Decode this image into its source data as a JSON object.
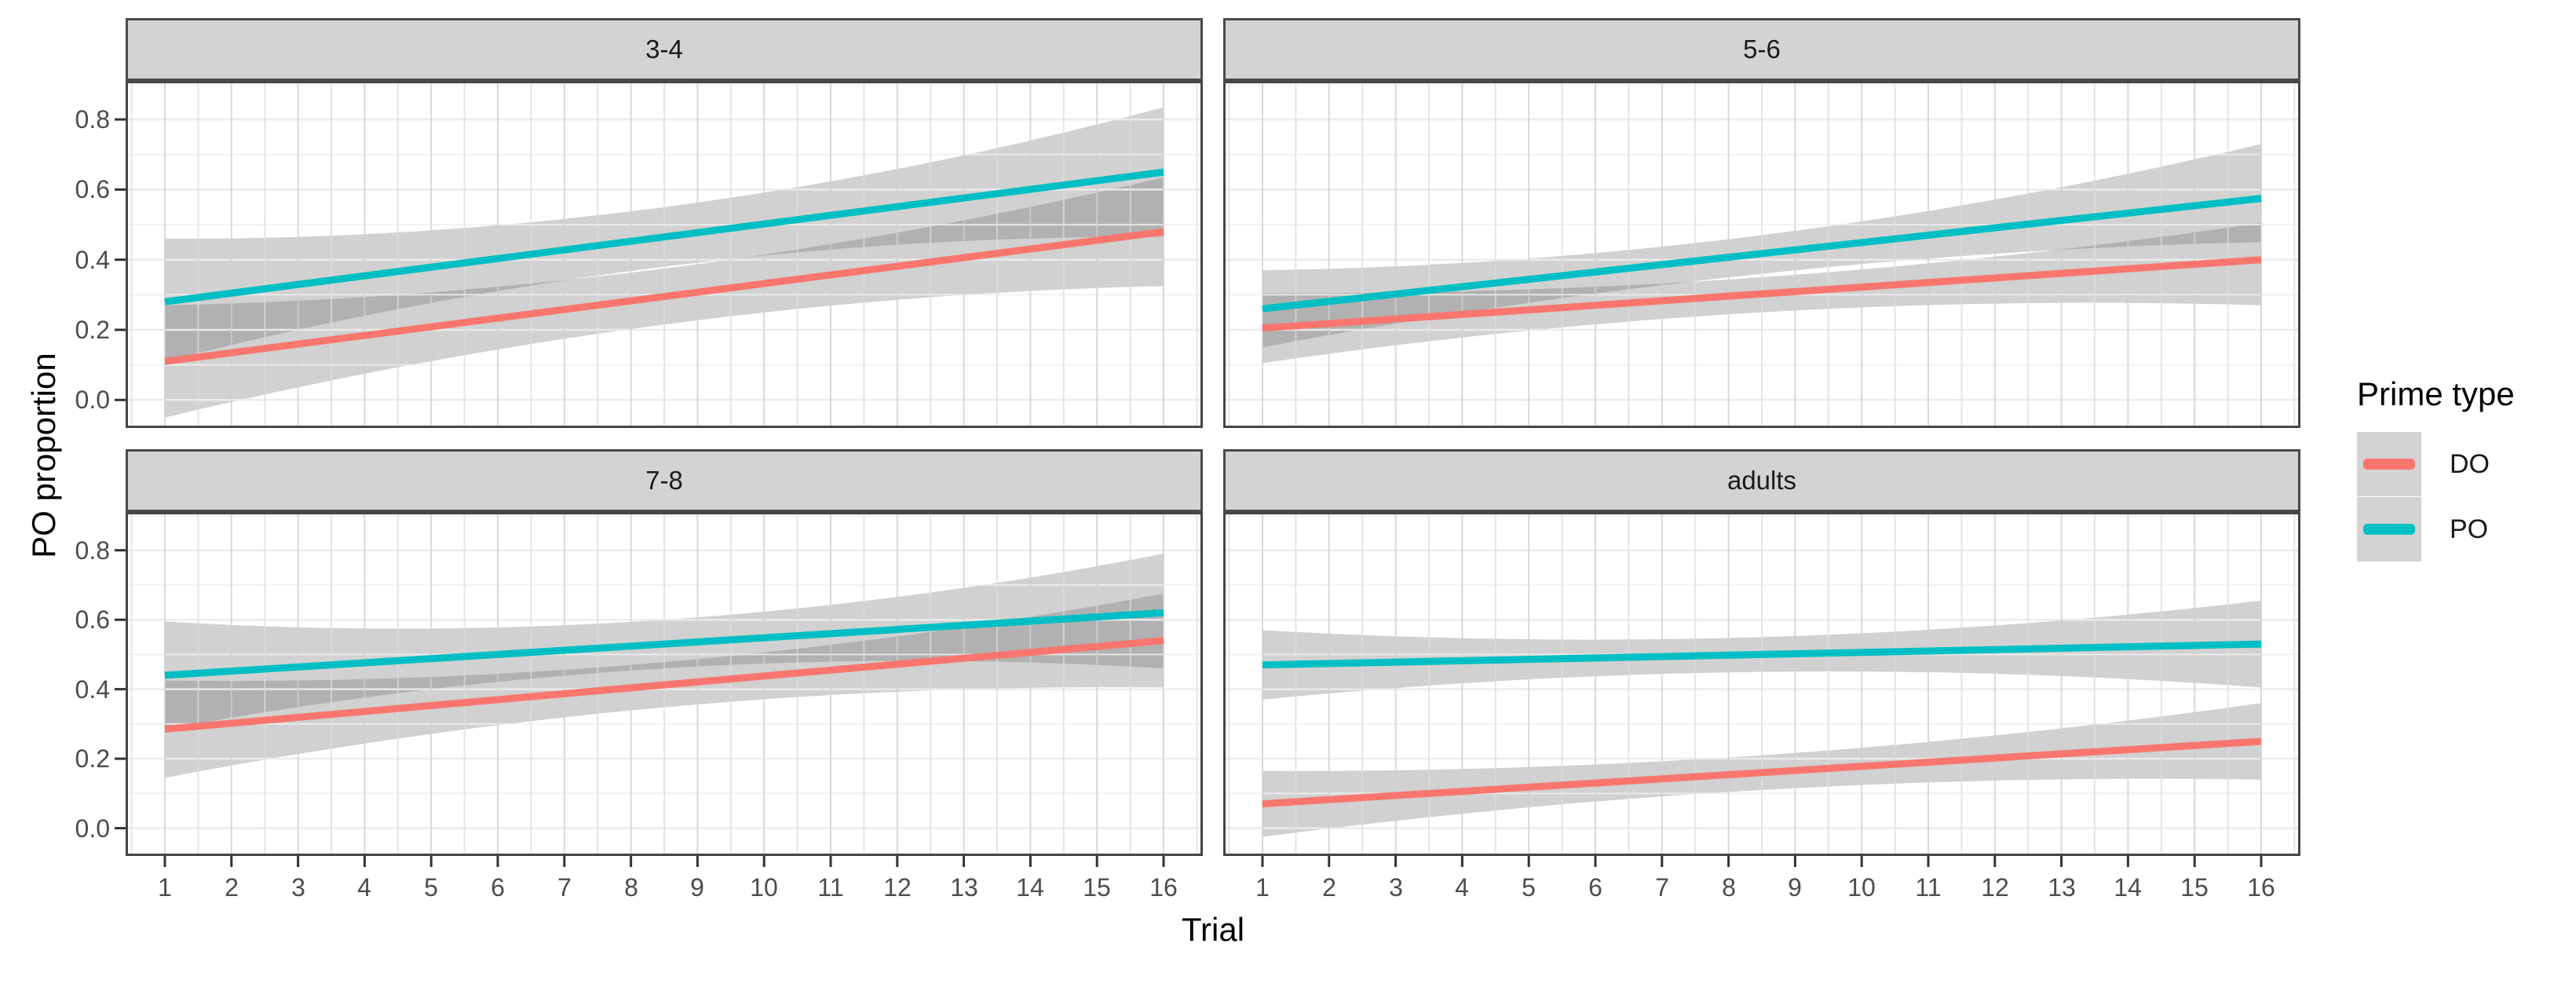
{
  "chart_data": {
    "type": "line",
    "title": "",
    "xlabel": "Trial",
    "ylabel": "PO proportion",
    "xlim": [
      0.41,
      16.59
    ],
    "ylim": [
      -0.08,
      0.91
    ],
    "x_ticks": [
      1,
      2,
      3,
      4,
      5,
      6,
      7,
      8,
      9,
      10,
      11,
      12,
      13,
      14,
      15,
      16
    ],
    "y_ticks": [
      {
        "value": 0.8,
        "label": "0.8"
      },
      {
        "value": 0.6,
        "label": "0.6"
      },
      {
        "value": 0.4,
        "label": "0.4"
      },
      {
        "value": 0.2,
        "label": "0.2"
      },
      {
        "value": 0.0,
        "label": "0.0"
      }
    ],
    "grid": {
      "major": true,
      "minor": true
    },
    "legend": {
      "title": "Prime type",
      "position": "right",
      "entries": [
        {
          "label": "DO",
          "color": "#F8766D"
        },
        {
          "label": "PO",
          "color": "#00BFC4"
        }
      ]
    },
    "colors": {
      "ribbon_fill": "#666666",
      "ribbon_opacity": 0.3,
      "panel_border": "#454545",
      "strip_bg": "#D3D3D3",
      "tick_mark": "#333333"
    },
    "panels": [
      {
        "label": "3-4",
        "series": [
          {
            "name": "DO",
            "color": "#F8766D",
            "x": [
              1,
              16
            ],
            "y": [
              0.11,
              0.48
            ],
            "ribbon_x": [
              1,
              8.5,
              16
            ],
            "ribbon_lower": [
              -0.05,
              0.215,
              0.325
            ],
            "ribbon_upper": [
              0.27,
              0.375,
              0.635
            ]
          },
          {
            "name": "PO",
            "color": "#00BFC4",
            "x": [
              1,
              16
            ],
            "y": [
              0.28,
              0.65
            ],
            "ribbon_x": [
              1,
              8.5,
              16
            ],
            "ribbon_lower": [
              0.11,
              0.38,
              0.465
            ],
            "ribbon_upper": [
              0.46,
              0.55,
              0.835
            ]
          }
        ]
      },
      {
        "label": "5-6",
        "series": [
          {
            "name": "DO",
            "color": "#F8766D",
            "x": [
              1,
              16
            ],
            "y": [
              0.205,
              0.4
            ],
            "ribbon_x": [
              1,
              8.5,
              16
            ],
            "ribbon_lower": [
              0.105,
              0.25,
              0.27
            ],
            "ribbon_upper": [
              0.305,
              0.35,
              0.505
            ]
          },
          {
            "name": "PO",
            "color": "#00BFC4",
            "x": [
              1,
              16
            ],
            "y": [
              0.26,
              0.575
            ],
            "ribbon_x": [
              1,
              8.5,
              16
            ],
            "ribbon_lower": [
              0.15,
              0.36,
              0.45
            ],
            "ribbon_upper": [
              0.37,
              0.47,
              0.73
            ]
          }
        ]
      },
      {
        "label": "7-8",
        "series": [
          {
            "name": "DO",
            "color": "#F8766D",
            "x": [
              1,
              16
            ],
            "y": [
              0.285,
              0.54
            ],
            "ribbon_x": [
              1,
              8.5,
              16
            ],
            "ribbon_lower": [
              0.145,
              0.348,
              0.405
            ],
            "ribbon_upper": [
              0.425,
              0.478,
              0.675
            ]
          },
          {
            "name": "PO",
            "color": "#00BFC4",
            "x": [
              1,
              16
            ],
            "y": [
              0.44,
              0.62
            ],
            "ribbon_x": [
              1,
              8.5,
              16
            ],
            "ribbon_lower": [
              0.285,
              0.46,
              0.46
            ],
            "ribbon_upper": [
              0.595,
              0.6,
              0.79
            ]
          }
        ]
      },
      {
        "label": "adults",
        "series": [
          {
            "name": "DO",
            "color": "#F8766D",
            "x": [
              1,
              16
            ],
            "y": [
              0.07,
              0.25
            ],
            "ribbon_x": [
              1,
              8.5,
              16
            ],
            "ribbon_lower": [
              -0.025,
              0.11,
              0.14
            ],
            "ribbon_upper": [
              0.165,
              0.21,
              0.36
            ]
          },
          {
            "name": "PO",
            "color": "#00BFC4",
            "x": [
              1,
              16
            ],
            "y": [
              0.47,
              0.53
            ],
            "ribbon_x": [
              1,
              8.5,
              16
            ],
            "ribbon_lower": [
              0.37,
              0.45,
              0.405
            ],
            "ribbon_upper": [
              0.57,
              0.55,
              0.655
            ]
          }
        ]
      }
    ]
  }
}
